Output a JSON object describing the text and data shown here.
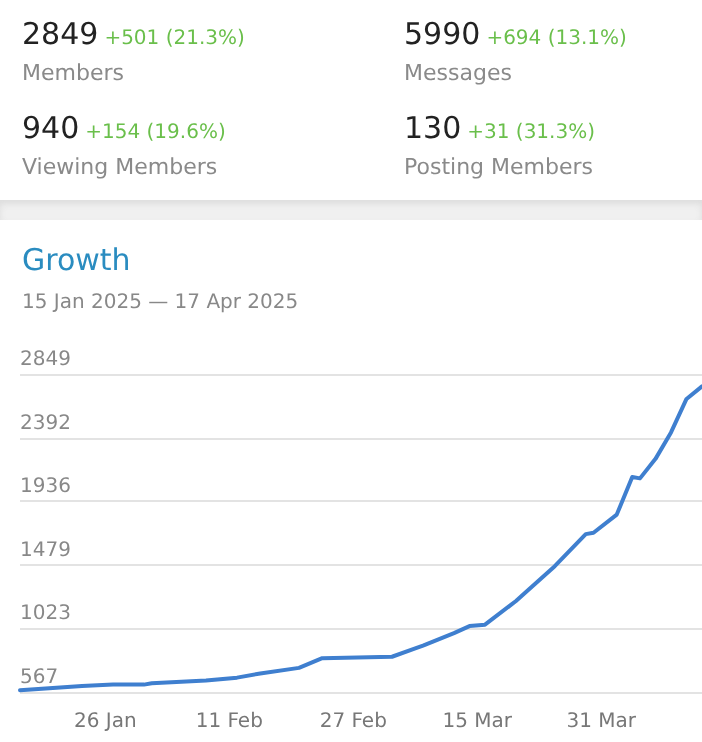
{
  "chart_data": {
    "type": "line",
    "title": "Growth",
    "subtitle": "15 Jan 2025 — 17 Apr 2025",
    "annotations": [
      "2849",
      "+501 (21.3%)",
      "Members",
      "5990",
      "+694 (13.1%)",
      "Messages",
      "940",
      "+154 (19.6%)",
      "Viewing Members",
      "130",
      "+31 (31.3%)",
      "Posting Members"
    ],
    "x": [
      "2025-01-15",
      "2025-01-23",
      "2025-01-27",
      "2025-01-31",
      "2025-02-01",
      "2025-02-08",
      "2025-02-12",
      "2025-02-15",
      "2025-02-20",
      "2025-02-23",
      "2025-03-04",
      "2025-03-07",
      "2025-03-08",
      "2025-03-12",
      "2025-03-14",
      "2025-03-16",
      "2025-03-20",
      "2025-03-21",
      "2025-03-25",
      "2025-03-29",
      "2025-03-30",
      "2025-04-02",
      "2025-04-04",
      "2025-04-05",
      "2025-04-07",
      "2025-04-09",
      "2025-04-11",
      "2025-04-13"
    ],
    "series": [
      {
        "color": "#3f7fcf",
        "values": [
          580,
          610,
          620,
          620,
          630,
          650,
          670,
          700,
          740,
          810,
          820,
          880,
          900,
          990,
          1040,
          1050,
          1220,
          1270,
          1470,
          1700,
          1710,
          1840,
          2110,
          2100,
          2240,
          2430,
          2670,
          2760
        ]
      }
    ],
    "xlim": [
      "2025-01-15",
      "2025-04-13"
    ],
    "xticks": [
      {
        "value": "2025-01-26",
        "label": "26 Jan"
      },
      {
        "value": "2025-02-11",
        "label": "11 Feb"
      },
      {
        "value": "2025-02-27",
        "label": "27 Feb"
      },
      {
        "value": "2025-03-15",
        "label": "15 Mar"
      },
      {
        "value": "2025-03-31",
        "label": "31 Mar"
      }
    ],
    "ylim": [
      567,
      2849
    ],
    "yticks": [
      567,
      1023,
      1479,
      1936,
      2392,
      2849
    ],
    "grid": "y",
    "marker": "none",
    "line_style": "solid"
  }
}
